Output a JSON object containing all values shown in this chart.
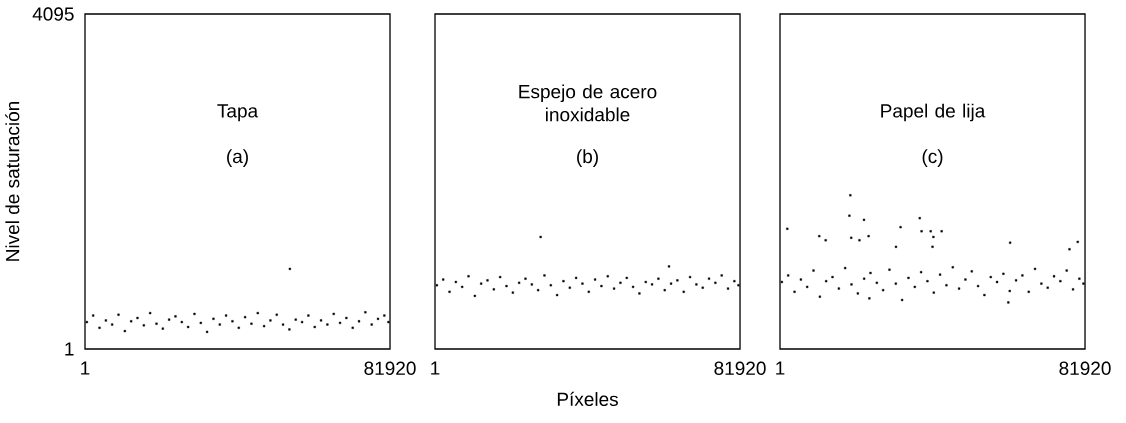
{
  "chart_data": [
    {
      "type": "scatter",
      "title": "Tapa",
      "subtitle": "(a)",
      "ylabel": "Nivel de saturación",
      "color": "#000000",
      "marker": "square",
      "x": [
        500,
        2200,
        3900,
        5600,
        7300,
        9000,
        10700,
        12400,
        14100,
        15800,
        17500,
        19200,
        20900,
        22600,
        24300,
        26000,
        27700,
        29400,
        31100,
        32800,
        34500,
        36200,
        37900,
        39600,
        41300,
        43000,
        44700,
        46400,
        48100,
        49800,
        51500,
        53200,
        54900,
        55020,
        56600,
        58300,
        60000,
        61700,
        63400,
        65100,
        66800,
        68500,
        70200,
        71900,
        73600,
        75300,
        77000,
        78700,
        80400,
        81500
      ],
      "values": [
        330,
        410,
        260,
        350,
        300,
        420,
        220,
        340,
        380,
        290,
        440,
        310,
        250,
        360,
        400,
        330,
        270,
        430,
        320,
        210,
        370,
        300,
        410,
        340,
        260,
        390,
        310,
        440,
        280,
        350,
        420,
        300,
        240,
        980,
        360,
        330,
        410,
        270,
        350,
        300,
        430,
        320,
        380,
        260,
        340,
        450,
        300,
        370,
        410,
        330
      ],
      "xlim": [
        1,
        81920
      ],
      "ylim": [
        1,
        4095
      ],
      "xticks": [
        1,
        81920
      ],
      "yticks": [
        1,
        4095
      ]
    },
    {
      "type": "scatter",
      "title": "Espejo de acero inoxidable",
      "subtitle": "(b)",
      "xlabel": "Píxeles",
      "color": "#000000",
      "marker": "square",
      "x": [
        500,
        2200,
        3900,
        5600,
        7300,
        9000,
        10700,
        12400,
        14100,
        15800,
        17500,
        19200,
        20900,
        22600,
        24300,
        26000,
        27700,
        29400,
        31100,
        32800,
        34500,
        36200,
        37900,
        39600,
        41300,
        43000,
        44700,
        46400,
        48100,
        49800,
        51500,
        53200,
        54900,
        56600,
        58300,
        60000,
        61700,
        63400,
        65100,
        66800,
        68500,
        70200,
        71900,
        73600,
        75300,
        77000,
        78700,
        80400,
        81500,
        28370,
        62850
      ],
      "values": [
        780,
        850,
        700,
        820,
        760,
        890,
        650,
        800,
        840,
        730,
        880,
        770,
        690,
        810,
        860,
        790,
        720,
        900,
        780,
        660,
        830,
        750,
        870,
        800,
        700,
        850,
        770,
        890,
        740,
        810,
        870,
        760,
        680,
        820,
        790,
        860,
        720,
        800,
        840,
        700,
        880,
        790,
        750,
        860,
        810,
        900,
        740,
        830,
        780,
        1370,
        1010
      ],
      "xlim": [
        1,
        81920
      ],
      "ylim": [
        1,
        4095
      ],
      "xticks": [
        1,
        81920
      ],
      "yticks": [
        1,
        4095
      ],
      "tick_labels": "x"
    },
    {
      "type": "scatter",
      "title": "Papel de lija",
      "subtitle": "(c)",
      "color": "#000000",
      "marker": "square",
      "x": [
        500,
        2200,
        3900,
        5600,
        7300,
        9000,
        10700,
        12400,
        14100,
        15800,
        17500,
        19200,
        20900,
        22600,
        24300,
        26000,
        27700,
        29400,
        31100,
        32800,
        34500,
        36200,
        37900,
        39600,
        41300,
        43000,
        44700,
        46400,
        48100,
        49800,
        51500,
        53200,
        54900,
        56600,
        58300,
        60000,
        61700,
        63400,
        65100,
        66800,
        68500,
        70200,
        71900,
        73600,
        75300,
        77000,
        78700,
        80400,
        81500,
        18890,
        1960,
        18640,
        22560,
        37530,
        32380,
        38020,
        40470,
        43410,
        41200,
        10550,
        12260,
        19130,
        21340,
        23790,
        40960,
        61810,
        79960,
        31150,
        77750,
        24000,
        61320
      ],
      "values": [
        820,
        900,
        700,
        850,
        760,
        960,
        640,
        830,
        880,
        740,
        990,
        790,
        680,
        860,
        930,
        810,
        720,
        970,
        800,
        600,
        870,
        760,
        940,
        830,
        690,
        910,
        780,
        1000,
        740,
        850,
        950,
        770,
        660,
        880,
        820,
        920,
        710,
        840,
        900,
        700,
        980,
        800,
        750,
        890,
        830,
        960,
        730,
        860,
        800,
        1880,
        1470,
        1630,
        1580,
        1600,
        1490,
        1440,
        1440,
        1440,
        1370,
        1380,
        1330,
        1360,
        1330,
        1380,
        1250,
        1300,
        1310,
        1250,
        1220,
        620,
        570
      ],
      "xlim": [
        1,
        81920
      ],
      "ylim": [
        1,
        4095
      ],
      "xticks": [
        1,
        81920
      ],
      "yticks": [
        1,
        4095
      ],
      "tick_labels": "x"
    }
  ]
}
